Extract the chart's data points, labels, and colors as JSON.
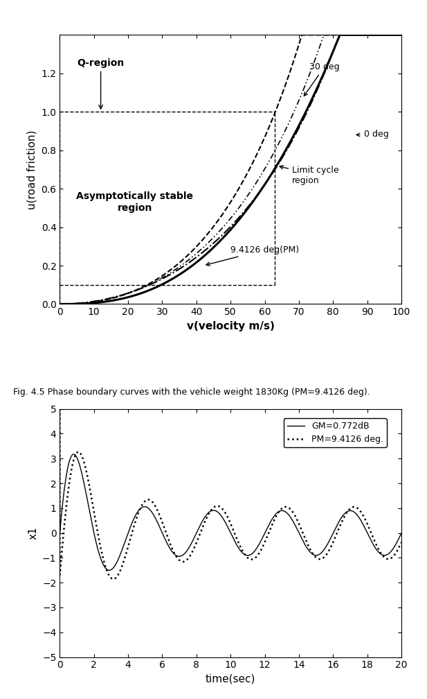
{
  "fig_width": 6.17,
  "fig_height": 10.08,
  "dpi": 100,
  "top_plot": {
    "xlim": [
      0,
      100
    ],
    "ylim": [
      0,
      1.4
    ],
    "xlabel": "v(velocity m/s)",
    "ylabel": "u(road friction)",
    "xticks": [
      0,
      10,
      20,
      30,
      40,
      50,
      60,
      70,
      80,
      90,
      100
    ],
    "yticks": [
      0,
      0.2,
      0.4,
      0.6,
      0.8,
      1.0,
      1.2
    ]
  },
  "bottom_plot": {
    "xlim": [
      0,
      20
    ],
    "ylim": [
      -5,
      5
    ],
    "xlabel": "time(sec)",
    "ylabel": "x1",
    "xticks": [
      0,
      2,
      4,
      6,
      8,
      10,
      12,
      14,
      16,
      18,
      20
    ],
    "yticks": [
      -5,
      -4,
      -3,
      -2,
      -1,
      0,
      1,
      2,
      3,
      4,
      5
    ],
    "legend_solid": "GM=0.772dB",
    "legend_dot": "PM=9.4126 deg."
  },
  "caption": "Fig. 4.5 Phase boundary curves with the vehicle weight 1830Kg (PM=9.4126 deg)."
}
